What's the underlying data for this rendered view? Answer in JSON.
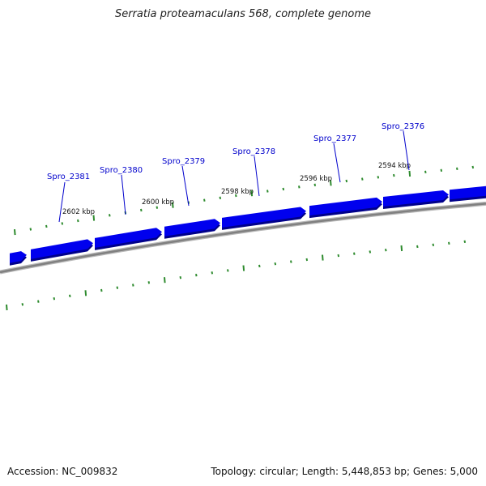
{
  "title": "Serratia proteamaculans 568, complete genome",
  "footer": {
    "accession": "Accession: NC_009832",
    "summary": "Topology: circular; Length: 5,448,853 bp; Genes: 5,000"
  },
  "genes": [
    {
      "label": "Spro_2381"
    },
    {
      "label": "Spro_2380"
    },
    {
      "label": "Spro_2379"
    },
    {
      "label": "Spro_2378"
    },
    {
      "label": "Spro_2377"
    },
    {
      "label": "Spro_2376"
    }
  ],
  "scale_labels": [
    "2602 kbp",
    "2600 kbp",
    "2598 kbp",
    "2596 kbp",
    "2594 kbp"
  ],
  "colors": {
    "gene_fill": "#0000ee",
    "gene_shadow": "#00008a",
    "backbone": "#808080",
    "tick": "#2e8b2e",
    "label": "#0000cc",
    "leader": "#0000cc"
  }
}
